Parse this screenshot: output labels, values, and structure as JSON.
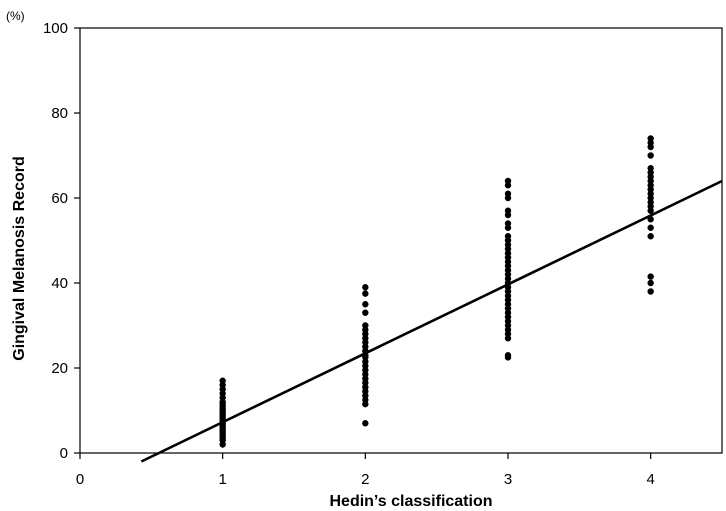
{
  "chart_data": {
    "type": "scatter",
    "title": "",
    "xlabel": "Hedin’s classification",
    "ylabel": "Gingival Melanosis Record",
    "y_unit": "(%)",
    "xlim": [
      0,
      4.5
    ],
    "ylim": [
      0,
      100
    ],
    "x_ticks": [
      0,
      1,
      2,
      3,
      4
    ],
    "y_ticks": [
      0,
      20,
      40,
      60,
      80,
      100
    ],
    "grid": false,
    "legend": "none",
    "colors": {
      "points": "#000000",
      "line": "#000000",
      "axes": "#000000"
    },
    "trendline": {
      "x": [
        0.43,
        4.5
      ],
      "y": [
        -2.0,
        64.0
      ]
    },
    "series": [
      {
        "points": [
          [
            1,
            2
          ],
          [
            1,
            3
          ],
          [
            1,
            3.5
          ],
          [
            1,
            4
          ],
          [
            1,
            4.5
          ],
          [
            1,
            5
          ],
          [
            1,
            5.5
          ],
          [
            1,
            6
          ],
          [
            1,
            6.5
          ],
          [
            1,
            7
          ],
          [
            1,
            7.5
          ],
          [
            1,
            8
          ],
          [
            1,
            8.5
          ],
          [
            1,
            9
          ],
          [
            1,
            9.5
          ],
          [
            1,
            10
          ],
          [
            1,
            10.5
          ],
          [
            1,
            11
          ],
          [
            1,
            11.5
          ],
          [
            1,
            12
          ],
          [
            1,
            13
          ],
          [
            1,
            14
          ],
          [
            1,
            15
          ],
          [
            1,
            16
          ],
          [
            1,
            17
          ],
          [
            2,
            7
          ],
          [
            2,
            11.5
          ],
          [
            2,
            12.5
          ],
          [
            2,
            13.5
          ],
          [
            2,
            14.5
          ],
          [
            2,
            15.5
          ],
          [
            2,
            16.5
          ],
          [
            2,
            17.5
          ],
          [
            2,
            18.5
          ],
          [
            2,
            19.5
          ],
          [
            2,
            20.5
          ],
          [
            2,
            21.5
          ],
          [
            2,
            22.5
          ],
          [
            2,
            23
          ],
          [
            2,
            24
          ],
          [
            2,
            25
          ],
          [
            2,
            26
          ],
          [
            2,
            27
          ],
          [
            2,
            28
          ],
          [
            2,
            29
          ],
          [
            2,
            30
          ],
          [
            2,
            33
          ],
          [
            2,
            35
          ],
          [
            2,
            37.5
          ],
          [
            2,
            39
          ],
          [
            3,
            22.5
          ],
          [
            3,
            23
          ],
          [
            3,
            27
          ],
          [
            3,
            28
          ],
          [
            3,
            29
          ],
          [
            3,
            30
          ],
          [
            3,
            31
          ],
          [
            3,
            32
          ],
          [
            3,
            33
          ],
          [
            3,
            34
          ],
          [
            3,
            35
          ],
          [
            3,
            36
          ],
          [
            3,
            37
          ],
          [
            3,
            38
          ],
          [
            3,
            39
          ],
          [
            3,
            40
          ],
          [
            3,
            41
          ],
          [
            3,
            42
          ],
          [
            3,
            43
          ],
          [
            3,
            44
          ],
          [
            3,
            45
          ],
          [
            3,
            46
          ],
          [
            3,
            47
          ],
          [
            3,
            48
          ],
          [
            3,
            49
          ],
          [
            3,
            50
          ],
          [
            3,
            51
          ],
          [
            3,
            53
          ],
          [
            3,
            54
          ],
          [
            3,
            56
          ],
          [
            3,
            57
          ],
          [
            3,
            60
          ],
          [
            3,
            61
          ],
          [
            3,
            63
          ],
          [
            3,
            64
          ],
          [
            4,
            38
          ],
          [
            4,
            40
          ],
          [
            4,
            41.5
          ],
          [
            4,
            51
          ],
          [
            4,
            53
          ],
          [
            4,
            55
          ],
          [
            4,
            57
          ],
          [
            4,
            58
          ],
          [
            4,
            59
          ],
          [
            4,
            60
          ],
          [
            4,
            61
          ],
          [
            4,
            62
          ],
          [
            4,
            63
          ],
          [
            4,
            64
          ],
          [
            4,
            65
          ],
          [
            4,
            66
          ],
          [
            4,
            67
          ],
          [
            4,
            70
          ],
          [
            4,
            72
          ],
          [
            4,
            73
          ],
          [
            4,
            74
          ]
        ]
      }
    ]
  }
}
